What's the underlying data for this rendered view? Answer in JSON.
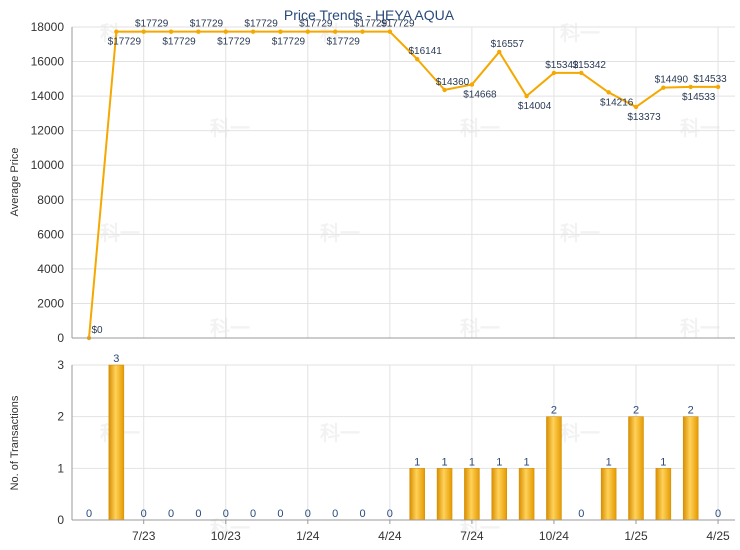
{
  "chart_data": [
    {
      "type": "line",
      "title": "Price Trends - HEYA AQUA",
      "ylabel": "Average Price",
      "ylim": [
        0,
        18000
      ],
      "yticks": [
        0,
        2000,
        4000,
        6000,
        8000,
        10000,
        12000,
        14000,
        16000,
        18000
      ],
      "x": [
        "2023-05",
        "2023-06",
        "2023-07",
        "2023-08",
        "2023-09",
        "2023-10",
        "2023-11",
        "2023-12",
        "2024-01",
        "2024-02",
        "2024-03",
        "2024-04",
        "2024-05",
        "2024-06",
        "2024-07",
        "2024-08",
        "2024-09",
        "2024-10",
        "2024-11",
        "2024-12",
        "2025-01",
        "2025-02",
        "2025-03",
        "2025-04"
      ],
      "values": [
        0,
        17729,
        17729,
        17729,
        17729,
        17729,
        17729,
        17729,
        17729,
        17729,
        17729,
        17729,
        16141,
        14360,
        14668,
        16557,
        14004,
        15342,
        15342,
        14216,
        13373,
        14490,
        14533,
        14533
      ],
      "labels": [
        "$0",
        "$17729",
        "$17729",
        "$17729",
        "$17729",
        "$17729",
        "$17729",
        "$17729",
        "$17729",
        "$17729",
        "$17729",
        "$17729",
        "$16141",
        "$14360",
        "$14668",
        "$16557",
        "$14004",
        "$15342",
        "$15342",
        "$14216",
        "$13373",
        "$14490",
        "$14533",
        "$14533"
      ],
      "line_color": "#f5a800",
      "grid": true
    },
    {
      "type": "bar",
      "ylabel": "No. of Transactions",
      "ylim": [
        0,
        3
      ],
      "yticks": [
        0,
        1,
        2,
        3
      ],
      "x": [
        "2023-05",
        "2023-06",
        "2023-07",
        "2023-08",
        "2023-09",
        "2023-10",
        "2023-11",
        "2023-12",
        "2024-01",
        "2024-02",
        "2024-03",
        "2024-04",
        "2024-05",
        "2024-06",
        "2024-07",
        "2024-08",
        "2024-09",
        "2024-10",
        "2024-11",
        "2024-12",
        "2025-01",
        "2025-02",
        "2025-03",
        "2025-04"
      ],
      "values": [
        0,
        3,
        0,
        0,
        0,
        0,
        0,
        0,
        0,
        0,
        0,
        0,
        1,
        1,
        1,
        1,
        1,
        2,
        0,
        1,
        2,
        1,
        2,
        0
      ],
      "xticklabels": [
        "7/23",
        "10/23",
        "1/24",
        "4/24",
        "7/24",
        "10/24",
        "1/25",
        "4/25"
      ],
      "bar_color": "#f5a800",
      "grid": true
    }
  ],
  "watermark": "科一"
}
